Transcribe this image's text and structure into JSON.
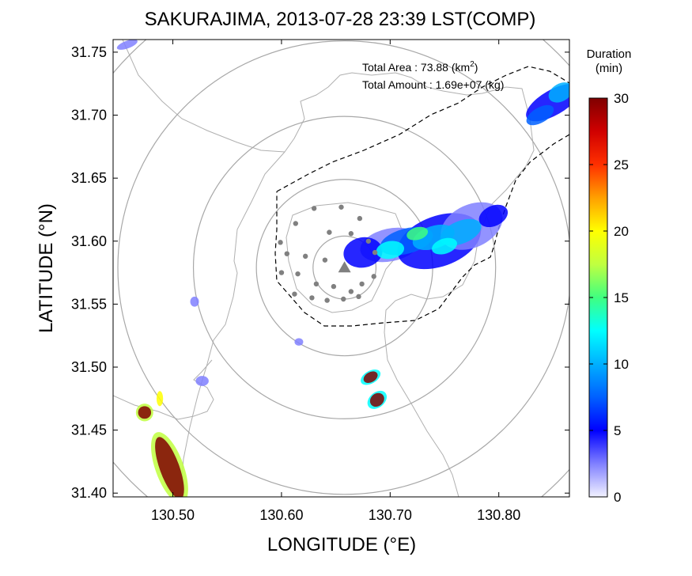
{
  "chart_data": {
    "type": "heatmap",
    "title": "SAKURAJIMA, 2013-07-28 23:39 LST(COMP)",
    "xlabel": "LONGITUDE (°E)",
    "ylabel": "LATITUDE (°N)",
    "xlim": [
      130.445,
      130.865
    ],
    "ylim": [
      31.397,
      31.76
    ],
    "x_ticks": [
      "130.50",
      "130.60",
      "130.70",
      "130.80"
    ],
    "x_tick_values": [
      130.5,
      130.6,
      130.7,
      130.8
    ],
    "y_ticks": [
      "31.40",
      "31.45",
      "31.50",
      "31.55",
      "31.60",
      "31.65",
      "31.70",
      "31.75"
    ],
    "y_tick_values": [
      31.4,
      31.45,
      31.5,
      31.55,
      31.6,
      31.65,
      31.7,
      31.75
    ],
    "annotations": {
      "area_label": "Total Area   : 73.88 (km",
      "area_sup": "2",
      "area_close": ")",
      "amount_label": "Total Amount : 1.69e+07 (kg)"
    },
    "colorbar": {
      "title_line1": "Duration",
      "title_line2": "(min)",
      "min": 0,
      "max": 30,
      "tick_values": [
        0,
        5,
        10,
        15,
        20,
        25,
        30
      ],
      "tick_labels": [
        "0",
        "5",
        "10",
        "15",
        "20",
        "25",
        "30"
      ],
      "colors": [
        "#f2f2ff",
        "#8080ff",
        "#0000ff",
        "#0060ff",
        "#00b0ff",
        "#00ffff",
        "#40ff80",
        "#c0ff40",
        "#ffff00",
        "#ffa000",
        "#ff3000",
        "#d00000",
        "#800000"
      ]
    },
    "vent": {
      "lon": 130.658,
      "lat": 31.579
    },
    "range_rings_center": {
      "lon": 130.658,
      "lat": 31.579
    },
    "range_rings_lat_radius": [
      0.025,
      0.07,
      0.12,
      0.18,
      0.24
    ],
    "stations": [
      [
        130.63,
        31.626
      ],
      [
        130.655,
        31.627
      ],
      [
        130.672,
        31.618
      ],
      [
        130.644,
        31.607
      ],
      [
        130.613,
        31.614
      ],
      [
        130.605,
        31.59
      ],
      [
        130.622,
        31.588
      ],
      [
        130.64,
        31.585
      ],
      [
        130.615,
        31.574
      ],
      [
        130.632,
        31.566
      ],
      [
        130.648,
        31.564
      ],
      [
        130.664,
        31.56
      ],
      [
        130.674,
        31.566
      ],
      [
        130.685,
        31.572
      ],
      [
        130.686,
        31.591
      ],
      [
        130.6,
        31.575
      ],
      [
        130.612,
        31.558
      ],
      [
        130.628,
        31.555
      ],
      [
        130.642,
        31.553
      ],
      [
        130.657,
        31.554
      ],
      [
        130.671,
        31.556
      ],
      [
        130.599,
        31.599
      ],
      [
        130.664,
        31.606
      ],
      [
        130.68,
        31.6
      ]
    ],
    "echo_cells": [
      {
        "lon": 130.7,
        "lat": 31.597,
        "rx": 0.028,
        "ry": 0.013,
        "value": 3,
        "rot": -12
      },
      {
        "lon": 130.745,
        "lat": 31.6,
        "rx": 0.04,
        "ry": 0.02,
        "value": 4,
        "rot": -20
      },
      {
        "lon": 130.775,
        "lat": 31.612,
        "rx": 0.03,
        "ry": 0.017,
        "value": 3,
        "rot": -25
      },
      {
        "lon": 130.675,
        "lat": 31.591,
        "rx": 0.018,
        "ry": 0.012,
        "value": 6,
        "rot": -10
      },
      {
        "lon": 130.715,
        "lat": 31.6,
        "rx": 0.025,
        "ry": 0.01,
        "value": 8,
        "rot": -15
      },
      {
        "lon": 130.74,
        "lat": 31.603,
        "rx": 0.02,
        "ry": 0.009,
        "value": 10,
        "rot": -18
      },
      {
        "lon": 130.765,
        "lat": 31.607,
        "rx": 0.02,
        "ry": 0.009,
        "value": 9,
        "rot": -22
      },
      {
        "lon": 130.795,
        "lat": 31.62,
        "rx": 0.014,
        "ry": 0.008,
        "value": 5,
        "rot": -25
      },
      {
        "lon": 130.7,
        "lat": 31.593,
        "rx": 0.013,
        "ry": 0.007,
        "value": 12,
        "rot": -10
      },
      {
        "lon": 130.75,
        "lat": 31.596,
        "rx": 0.012,
        "ry": 0.006,
        "value": 13,
        "rot": -18
      },
      {
        "lon": 130.725,
        "lat": 31.606,
        "rx": 0.01,
        "ry": 0.005,
        "value": 14,
        "rot": -15
      },
      {
        "lon": 130.85,
        "lat": 31.71,
        "rx": 0.028,
        "ry": 0.01,
        "value": 4,
        "rot": -30
      },
      {
        "lon": 130.857,
        "lat": 31.718,
        "rx": 0.012,
        "ry": 0.007,
        "value": 10,
        "rot": -30
      },
      {
        "lon": 130.838,
        "lat": 31.7,
        "rx": 0.014,
        "ry": 0.006,
        "value": 8,
        "rot": -30
      },
      {
        "lon": 130.458,
        "lat": 31.756,
        "rx": 0.01,
        "ry": 0.003,
        "value": 3,
        "rot": -20
      },
      {
        "lon": 130.52,
        "lat": 31.552,
        "rx": 0.004,
        "ry": 0.004,
        "value": 3,
        "rot": 0
      },
      {
        "lon": 130.616,
        "lat": 31.52,
        "rx": 0.004,
        "ry": 0.003,
        "value": 3,
        "rot": 0
      },
      {
        "lon": 130.527,
        "lat": 31.489,
        "rx": 0.006,
        "ry": 0.004,
        "value": 3,
        "rot": 0
      },
      {
        "lon": 130.682,
        "lat": 31.492,
        "rx": 0.01,
        "ry": 0.005,
        "value": 12,
        "rot": -30
      },
      {
        "lon": 130.688,
        "lat": 31.474,
        "rx": 0.01,
        "ry": 0.006,
        "value": 12,
        "rot": -40
      },
      {
        "lon": 130.682,
        "lat": 31.492,
        "rx": 0.007,
        "ry": 0.004,
        "value": 30,
        "rot": -30
      },
      {
        "lon": 130.688,
        "lat": 31.474,
        "rx": 0.007,
        "ry": 0.005,
        "value": 30,
        "rot": -40
      },
      {
        "lon": 130.474,
        "lat": 31.464,
        "rx": 0.008,
        "ry": 0.007,
        "value": 18,
        "rot": 0
      },
      {
        "lon": 130.474,
        "lat": 31.464,
        "rx": 0.006,
        "ry": 0.005,
        "value": 30,
        "rot": 0
      },
      {
        "lon": 130.497,
        "lat": 31.42,
        "rx": 0.013,
        "ry": 0.03,
        "value": 18,
        "rot": -20
      },
      {
        "lon": 130.497,
        "lat": 31.42,
        "rx": 0.009,
        "ry": 0.026,
        "value": 30,
        "rot": -20
      },
      {
        "lon": 130.488,
        "lat": 31.475,
        "rx": 0.003,
        "ry": 0.006,
        "value": 20,
        "rot": 0
      }
    ]
  }
}
